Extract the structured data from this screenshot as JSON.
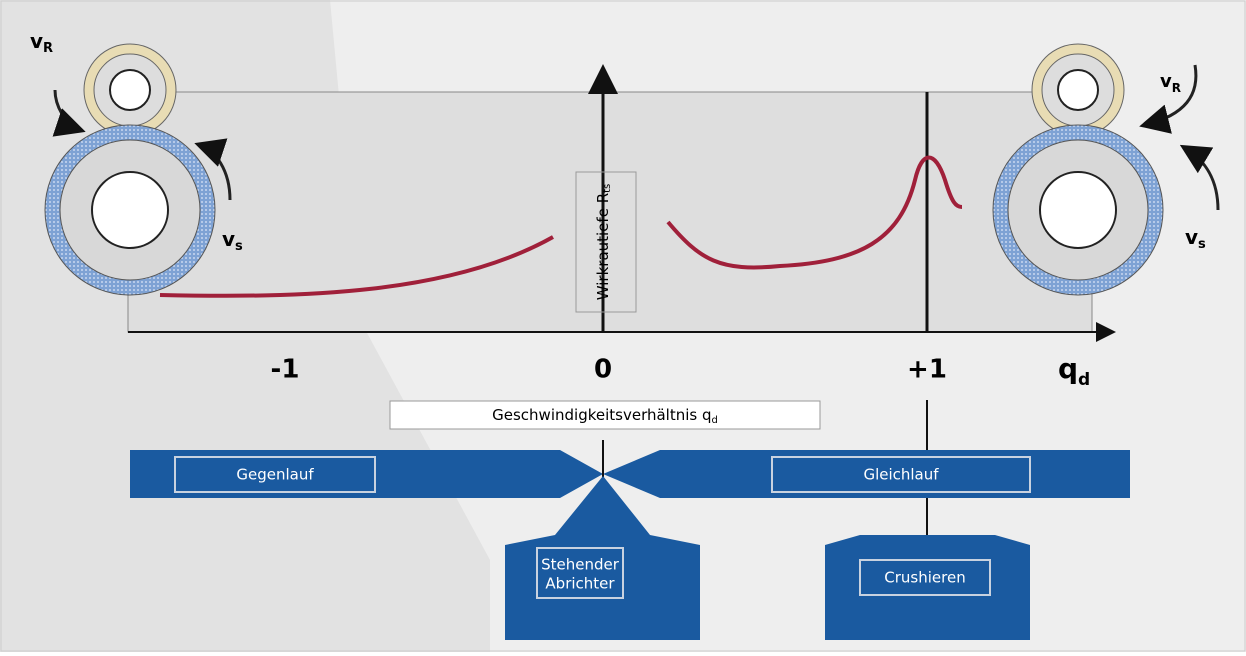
{
  "axis": {
    "y_label": {
      "main": "Wirkrautiefe R",
      "sub": "ts"
    },
    "x_label": {
      "main": "Geschwindigkeitsverhältnis q",
      "sub": "d"
    },
    "x_symbol": {
      "main": "q",
      "sub": "d"
    },
    "ticks": [
      "-1",
      "0",
      "+1"
    ]
  },
  "rollers": {
    "left": {
      "v_r": {
        "main": "v",
        "sub": "R"
      },
      "v_s": {
        "main": "v",
        "sub": "s"
      }
    },
    "right": {
      "v_r": {
        "main": "v",
        "sub": "R"
      },
      "v_s": {
        "main": "v",
        "sub": "s"
      }
    }
  },
  "regions": {
    "left": "Gegenlauf",
    "right": "Gleichlauf"
  },
  "modes": {
    "center": [
      "Stehender",
      "Abrichter"
    ],
    "right": "Crushieren"
  }
}
